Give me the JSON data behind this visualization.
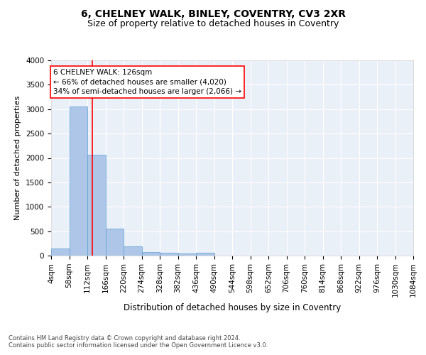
{
  "title": "6, CHELNEY WALK, BINLEY, COVENTRY, CV3 2XR",
  "subtitle": "Size of property relative to detached houses in Coventry",
  "xlabel": "Distribution of detached houses by size in Coventry",
  "ylabel": "Number of detached properties",
  "footnote1": "Contains HM Land Registry data © Crown copyright and database right 2024.",
  "footnote2": "Contains public sector information licensed under the Open Government Licence v3.0.",
  "bar_color": "#aec6e8",
  "bar_edge_color": "#5a9fd4",
  "background_color": "#eaf0f8",
  "grid_color": "#ffffff",
  "annotation_line1": "6 CHELNEY WALK: 126sqm",
  "annotation_line2": "← 66% of detached houses are smaller (4,020)",
  "annotation_line3": "34% of semi-detached houses are larger (2,066) →",
  "annotation_box_color": "white",
  "annotation_box_edge_color": "red",
  "vline_x": 126,
  "vline_color": "red",
  "bin_edges": [
    4,
    58,
    112,
    166,
    220,
    274,
    328,
    382,
    436,
    490,
    544,
    598,
    652,
    706,
    760,
    814,
    868,
    922,
    976,
    1030,
    1084
  ],
  "bar_heights": [
    140,
    3060,
    2060,
    560,
    195,
    80,
    55,
    40,
    55,
    0,
    0,
    0,
    0,
    0,
    0,
    0,
    0,
    0,
    0,
    0
  ],
  "ylim": [
    0,
    4000
  ],
  "yticks": [
    0,
    500,
    1000,
    1500,
    2000,
    2500,
    3000,
    3500,
    4000
  ],
  "title_fontsize": 10,
  "subtitle_fontsize": 9,
  "xlabel_fontsize": 8.5,
  "ylabel_fontsize": 8,
  "tick_fontsize": 7.5,
  "annotation_fontsize": 7.5,
  "footnote_fontsize": 6
}
